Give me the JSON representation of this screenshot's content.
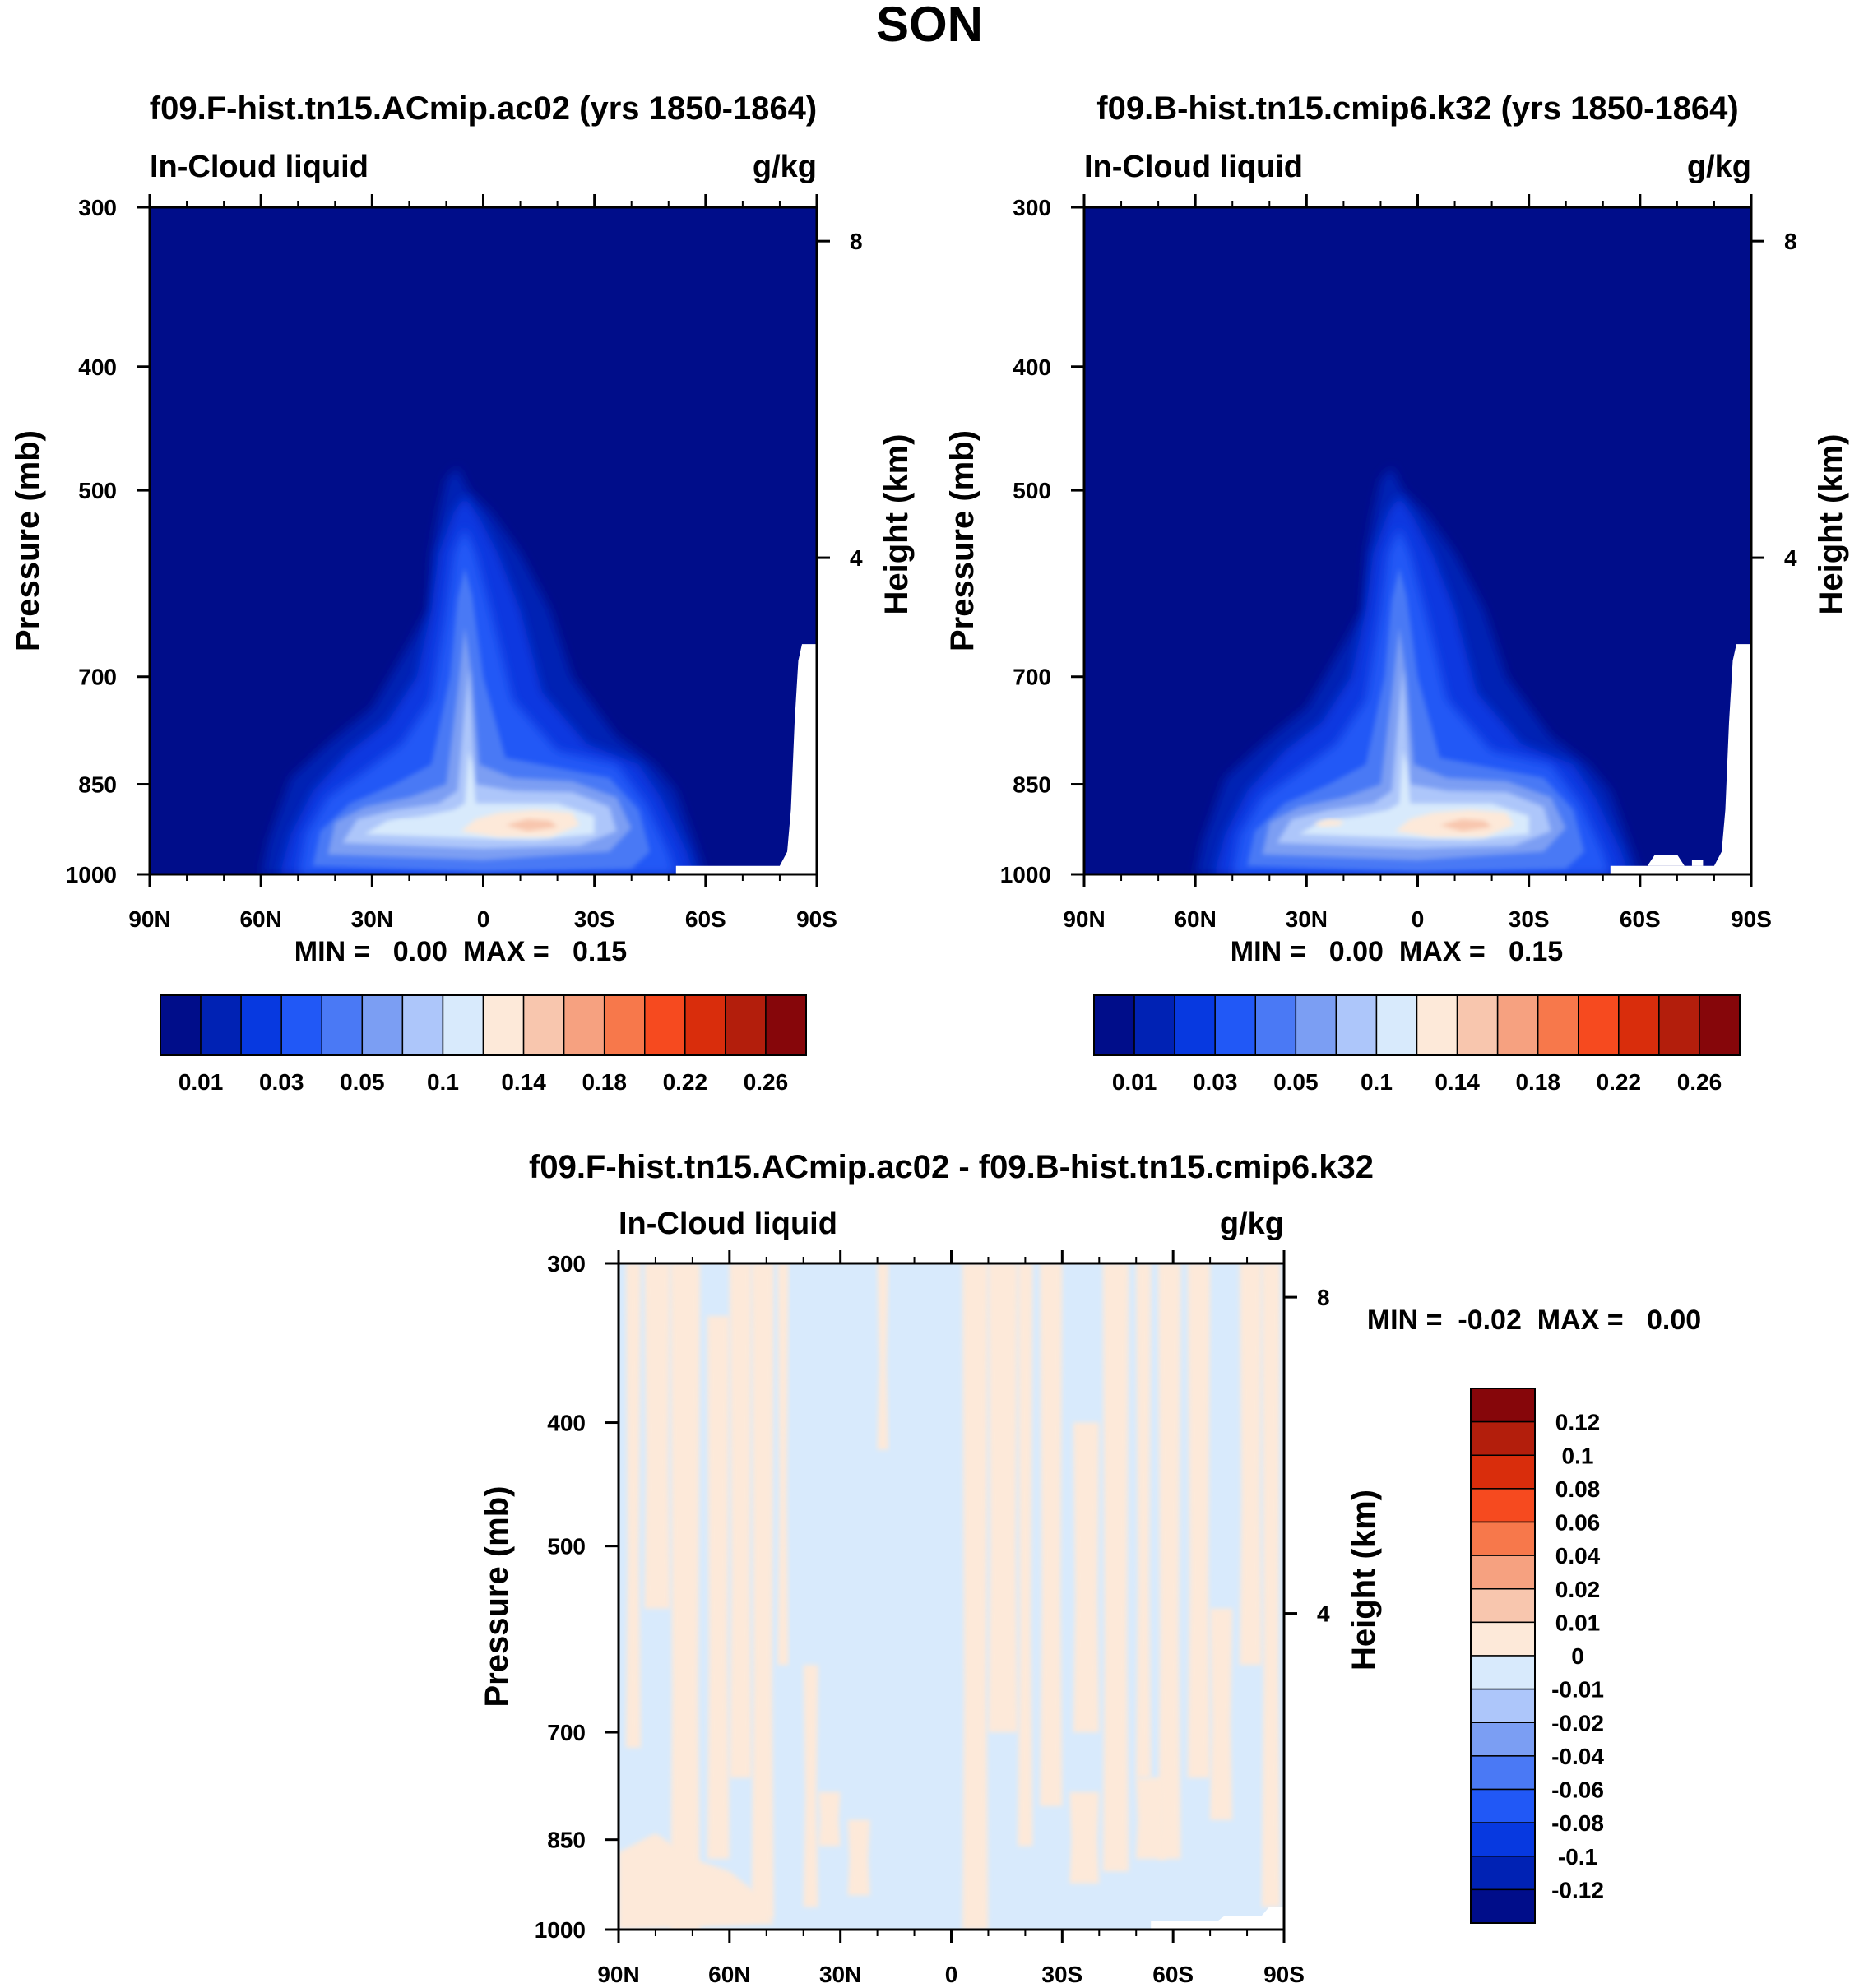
{
  "figure_title": "SON",
  "colors": {
    "seq_levels": [
      "#000d8a",
      "#0022b4",
      "#0739e0",
      "#2158f6",
      "#4a79f5",
      "#7b9ef3",
      "#adc6fa",
      "#d8eafc",
      "#fde9d9",
      "#f8c6ae",
      "#f6a180",
      "#f7784b",
      "#f64a1f",
      "#d92d0c",
      "#b31e0c",
      "#86060a"
    ],
    "diff_levels": [
      "#000d8a",
      "#0022b4",
      "#0739e0",
      "#2158f6",
      "#4a79f5",
      "#7b9ef3",
      "#adc6fa",
      "#d8eafc",
      "#fde9d9",
      "#f8c6ae",
      "#f6a180",
      "#f7784b",
      "#f64a1f",
      "#d92d0c",
      "#b31e0c",
      "#86060a"
    ],
    "missing": "#ffffff"
  },
  "chart_data": [
    {
      "type": "heatmap",
      "id": "panel-left",
      "title": "f09.F-hist.tn15.ACmip.ac02 (yrs 1850-1864)",
      "left_label": "In-Cloud liquid",
      "right_label": "g/kg",
      "ylabel": "Pressure (mb)",
      "y2label": "Height (km)",
      "x_ticks": [
        "90N",
        "60N",
        "30N",
        "0",
        "30S",
        "60S",
        "90S"
      ],
      "x_range": [
        90,
        -90
      ],
      "y_ticks": [
        "300",
        "400",
        "500",
        "700",
        "850",
        "1000"
      ],
      "y_range": [
        300,
        1000
      ],
      "y2_ticks": [
        "8",
        "4"
      ],
      "stats": "MIN =   0.00  MAX =   0.15",
      "colorbar_labels": [
        "0.01",
        "0.03",
        "0.05",
        "0.1",
        "0.14",
        "0.18",
        "0.22",
        "0.26"
      ],
      "contour_levels": [
        0.01,
        0.02,
        0.03,
        0.04,
        0.05,
        0.07,
        0.1,
        0.12,
        0.14,
        0.16,
        0.18,
        0.2,
        0.22,
        0.24,
        0.26
      ],
      "peak_value": 0.15,
      "peak_location": {
        "lat": -10,
        "pressure": 870
      }
    },
    {
      "type": "heatmap",
      "id": "panel-right",
      "title": "f09.B-hist.tn15.cmip6.k32 (yrs 1850-1864)",
      "left_label": "In-Cloud liquid",
      "right_label": "g/kg",
      "ylabel": "Pressure (mb)",
      "y2label": "Height (km)",
      "x_ticks": [
        "90N",
        "60N",
        "30N",
        "0",
        "30S",
        "60S",
        "90S"
      ],
      "x_range": [
        90,
        -90
      ],
      "y_ticks": [
        "300",
        "400",
        "500",
        "700",
        "850",
        "1000"
      ],
      "y_range": [
        300,
        1000
      ],
      "y2_ticks": [
        "8",
        "4"
      ],
      "stats": "MIN =   0.00  MAX =   0.15",
      "colorbar_labels": [
        "0.01",
        "0.03",
        "0.05",
        "0.1",
        "0.14",
        "0.18",
        "0.22",
        "0.26"
      ],
      "contour_levels": [
        0.01,
        0.02,
        0.03,
        0.04,
        0.05,
        0.07,
        0.1,
        0.12,
        0.14,
        0.16,
        0.18,
        0.2,
        0.22,
        0.24,
        0.26
      ],
      "peak_value": 0.15,
      "peak_location": {
        "lat": -10,
        "pressure": 870
      }
    },
    {
      "type": "heatmap",
      "id": "panel-diff",
      "title": "f09.F-hist.tn15.ACmip.ac02 - f09.B-hist.tn15.cmip6.k32",
      "left_label": "In-Cloud liquid",
      "right_label": "g/kg",
      "ylabel": "Pressure (mb)",
      "y2label": "Height (km)",
      "x_ticks": [
        "90N",
        "60N",
        "30N",
        "0",
        "30S",
        "60S",
        "90S"
      ],
      "x_range": [
        90,
        -90
      ],
      "y_ticks": [
        "300",
        "400",
        "500",
        "700",
        "850",
        "1000"
      ],
      "y_range": [
        300,
        1000
      ],
      "y2_ticks": [
        "8",
        "4"
      ],
      "stats": "MIN =  -0.02  MAX =   0.00",
      "colorbar_labels": [
        "0.12",
        "0.1",
        "0.08",
        "0.06",
        "0.04",
        "0.02",
        "0.01",
        "0",
        "-0.01",
        "-0.02",
        "-0.04",
        "-0.06",
        "-0.08",
        "-0.1",
        "-0.12"
      ],
      "value_range": [
        -0.02,
        0.0
      ]
    }
  ]
}
